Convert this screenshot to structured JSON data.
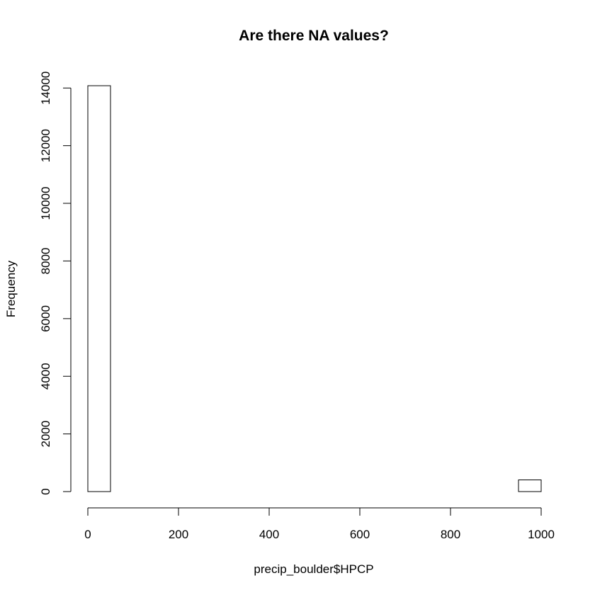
{
  "chart_data": {
    "type": "bar",
    "title": "Are there NA values?",
    "xlabel": "precip_boulder$HPCP",
    "ylabel": "Frequency",
    "bin_width": 50,
    "bins": [
      {
        "x0": 0,
        "x1": 50,
        "count": 14080
      },
      {
        "x0": 50,
        "x1": 100,
        "count": 0
      },
      {
        "x0": 100,
        "x1": 150,
        "count": 0
      },
      {
        "x0": 150,
        "x1": 200,
        "count": 0
      },
      {
        "x0": 200,
        "x1": 250,
        "count": 0
      },
      {
        "x0": 250,
        "x1": 300,
        "count": 0
      },
      {
        "x0": 300,
        "x1": 350,
        "count": 0
      },
      {
        "x0": 350,
        "x1": 400,
        "count": 0
      },
      {
        "x0": 400,
        "x1": 450,
        "count": 0
      },
      {
        "x0": 450,
        "x1": 500,
        "count": 0
      },
      {
        "x0": 500,
        "x1": 550,
        "count": 0
      },
      {
        "x0": 550,
        "x1": 600,
        "count": 0
      },
      {
        "x0": 600,
        "x1": 650,
        "count": 0
      },
      {
        "x0": 650,
        "x1": 700,
        "count": 0
      },
      {
        "x0": 700,
        "x1": 750,
        "count": 0
      },
      {
        "x0": 750,
        "x1": 800,
        "count": 0
      },
      {
        "x0": 800,
        "x1": 850,
        "count": 0
      },
      {
        "x0": 850,
        "x1": 900,
        "count": 0
      },
      {
        "x0": 900,
        "x1": 950,
        "count": 0
      },
      {
        "x0": 950,
        "x1": 1000,
        "count": 400
      }
    ],
    "x_ticks": [
      0,
      200,
      400,
      600,
      800,
      1000
    ],
    "y_ticks": [
      0,
      2000,
      4000,
      6000,
      8000,
      10000,
      12000,
      14000
    ],
    "xlim": [
      0,
      1000
    ],
    "ylim": [
      0,
      14080
    ],
    "grid": false,
    "colors": {
      "bar_fill": "#ffffff",
      "bar_stroke": "#000000",
      "axis": "#000000",
      "background": "#ffffff"
    }
  }
}
